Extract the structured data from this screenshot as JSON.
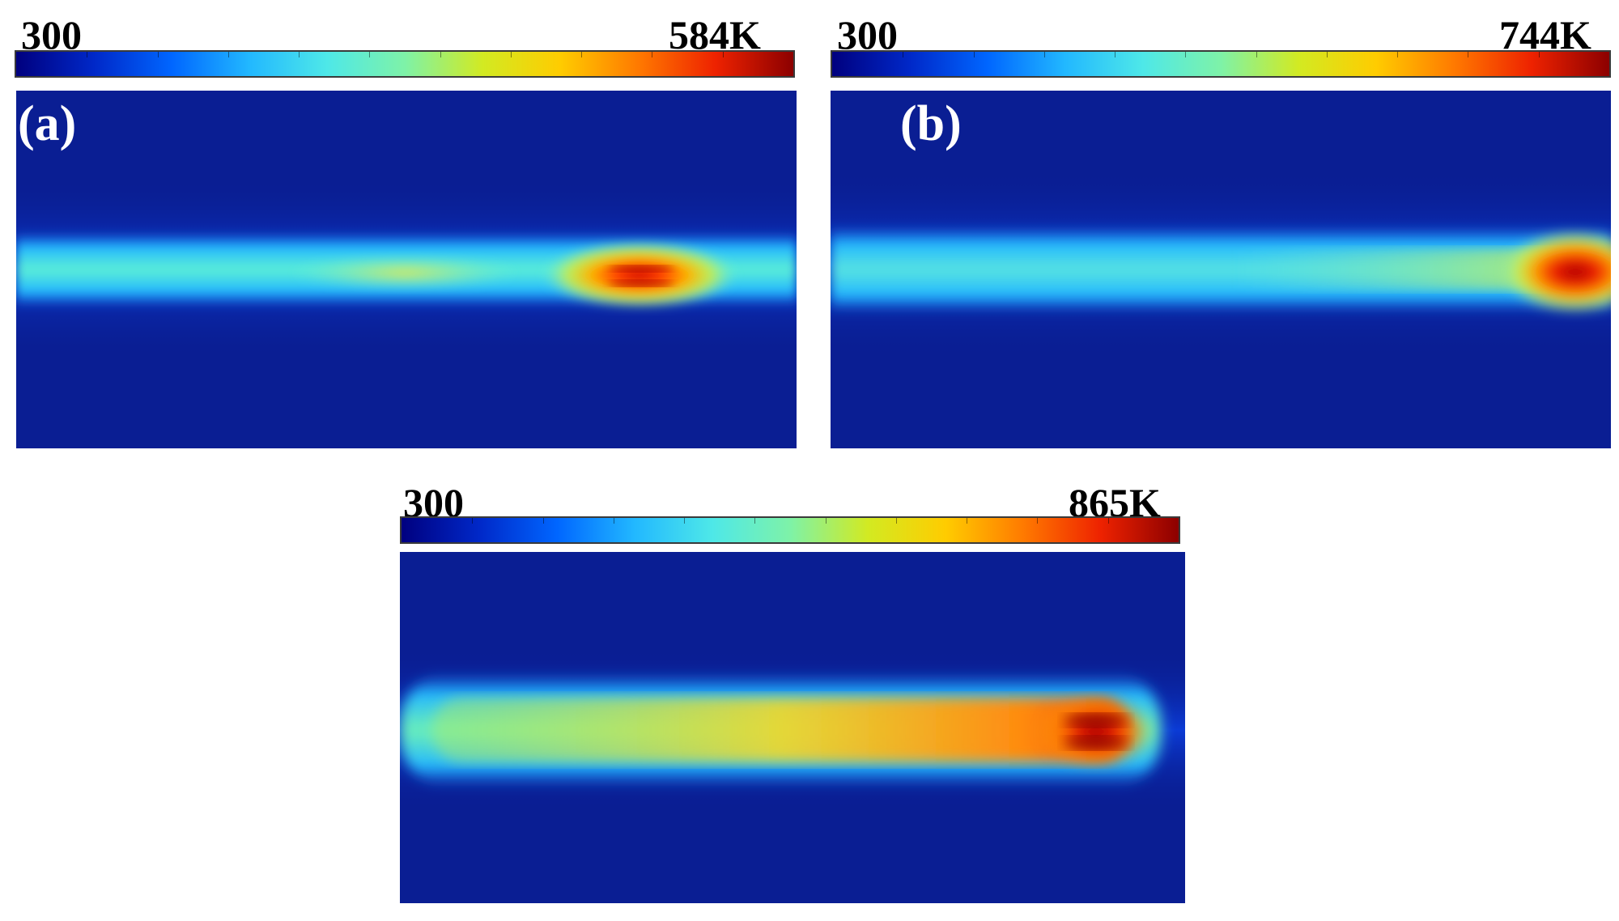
{
  "colormap": {
    "name": "jet",
    "stops": [
      "#00007f",
      "#0028c8",
      "#0066ff",
      "#22b8ff",
      "#4ee8e8",
      "#7ef2a8",
      "#d2ea22",
      "#ffcc00",
      "#ff7a00",
      "#ee2200",
      "#8c0000"
    ]
  },
  "panels": [
    {
      "id": "a",
      "letter": "(a)",
      "scale_min_label": "300",
      "scale_max_label": "584K",
      "scale_min": 300,
      "scale_max": 584
    },
    {
      "id": "b",
      "letter": "(b)",
      "scale_min_label": "300",
      "scale_max_label": "744K",
      "scale_min": 300,
      "scale_max": 744
    },
    {
      "id": "c",
      "letter": "",
      "scale_min_label": "300",
      "scale_max_label": "865K",
      "scale_min": 300,
      "scale_max": 865
    }
  ]
}
